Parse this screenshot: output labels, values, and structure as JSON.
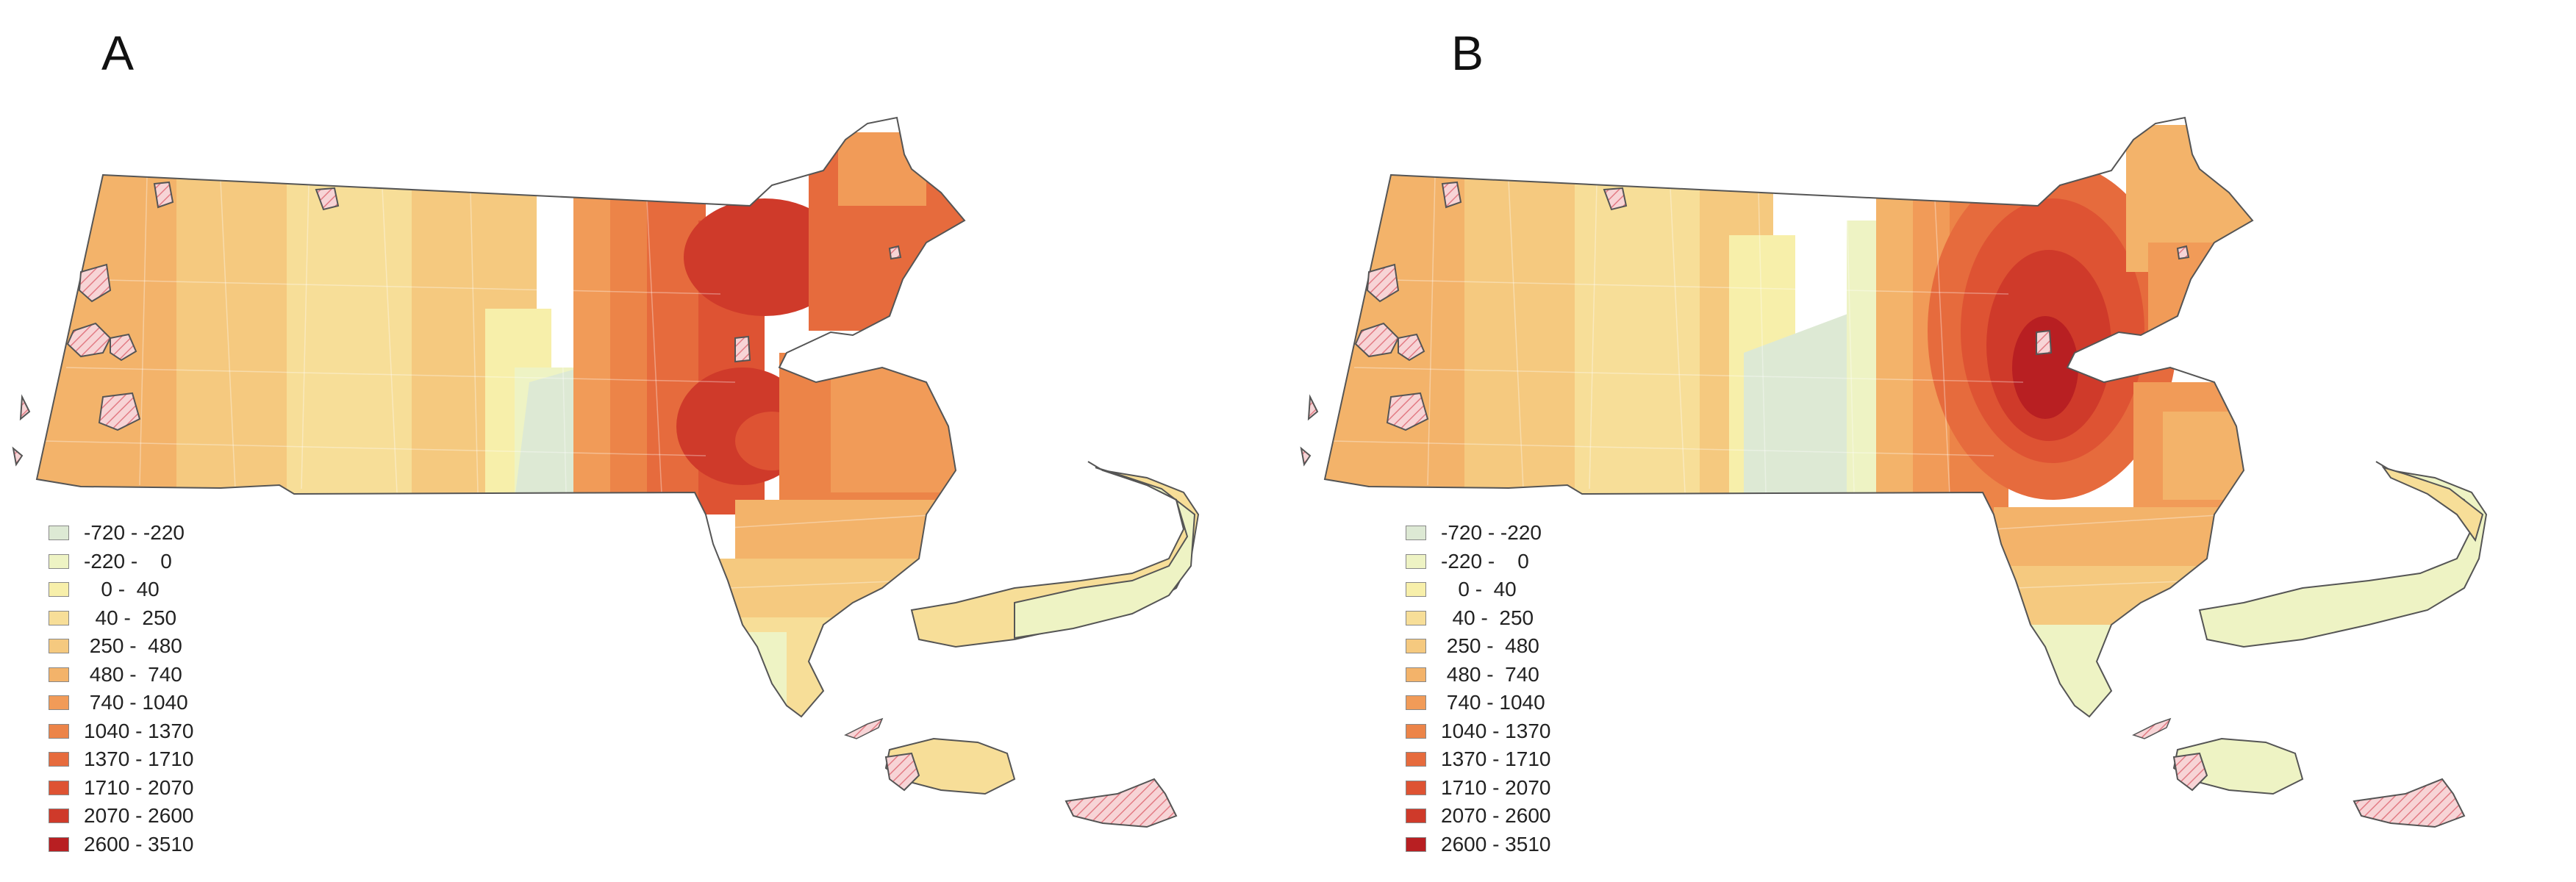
{
  "panels": [
    {
      "label": "A"
    },
    {
      "label": "B"
    }
  ],
  "legend": [
    {
      "label": "-720 - -220",
      "color": "#dde9d4"
    },
    {
      "label": "-220 -    0",
      "color": "#eef3c4"
    },
    {
      "label": "   0 -  40",
      "color": "#f7efaa"
    },
    {
      "label": "  40 -  250",
      "color": "#f7de98"
    },
    {
      "label": " 250 -  480",
      "color": "#f5c97f"
    },
    {
      "label": " 480 -  740",
      "color": "#f3b36a"
    },
    {
      "label": " 740 - 1040",
      "color": "#f19b58"
    },
    {
      "label": "1040 - 1370",
      "color": "#ec8448"
    },
    {
      "label": "1370 - 1710",
      "color": "#e66b3d"
    },
    {
      "label": "1710 - 2070",
      "color": "#de5333"
    },
    {
      "label": "2070 - 2600",
      "color": "#cf3a2a"
    },
    {
      "label": "2600 - 3510",
      "color": "#b81f22"
    }
  ],
  "colors": {
    "background": "#ffffff",
    "outline": "#555555",
    "hatched_area": "#f7d4d6",
    "hatch_line": "#e27b84"
  }
}
